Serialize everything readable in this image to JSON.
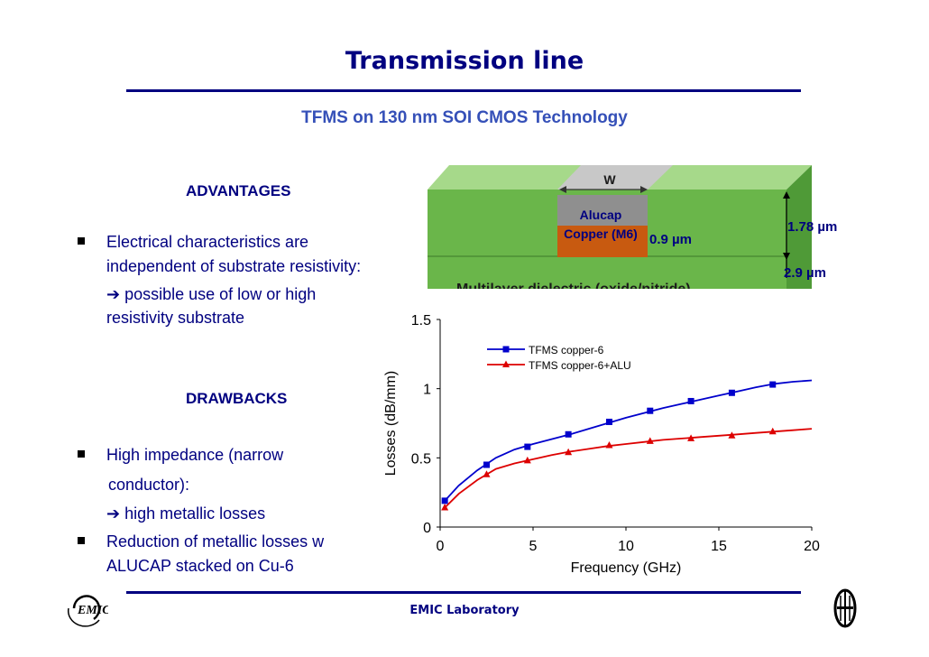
{
  "slide": {
    "title": "Transmission line",
    "subtitle": "TFMS on 130 nm SOI CMOS Technology",
    "footer": "EMIC Laboratory"
  },
  "advantages": {
    "heading": "ADVANTAGES",
    "lines": [
      "Electrical characteristics are",
      "independent of substrate resistivity:",
      "possible use of low or high",
      "resistivity substrate"
    ]
  },
  "drawbacks": {
    "heading": "DRAWBACKS",
    "lines": [
      "High impedance (narrow",
      "conductor):",
      "high metallic losses",
      "Reduction of metallic losses w",
      "ALUCAP stacked on Cu-6"
    ]
  },
  "cross_section": {
    "w_label": "W",
    "alucap_label": "Alucap",
    "copper_label": "Copper (M6)",
    "thickness_conductor": "0.9 µm",
    "thickness_top": "1.78 µm",
    "thickness_total": "2.9 µm",
    "dielectric_label": "Multilayer dielectric (oxide/nitride)",
    "colors": {
      "dielectric": "#6ab64a",
      "dielectric_top": "#a6d98a",
      "alucap": "#8f8f8f",
      "copper": "#c85a10"
    }
  },
  "chart_data": {
    "type": "line",
    "title": "",
    "xlabel": "Frequency (GHz)",
    "ylabel": "Losses (dB/mm)",
    "xlim": [
      0,
      20
    ],
    "ylim": [
      0,
      1.5
    ],
    "xticks": [
      "0",
      "5",
      "10",
      "15",
      "20"
    ],
    "yticks": [
      "0",
      "0.5",
      "1",
      "1.5"
    ],
    "grid": false,
    "legend_position": "top-center",
    "series": [
      {
        "name": "TFMS copper-6",
        "color": "#0000cc",
        "marker": "square",
        "x": [
          0.25,
          2.5,
          4.7,
          6.9,
          9.1,
          11.3,
          13.5,
          15.7,
          17.9
        ],
        "y": [
          0.19,
          0.45,
          0.58,
          0.67,
          0.76,
          0.84,
          0.91,
          0.97,
          1.03
        ],
        "curve_x": [
          0.25,
          1,
          2,
          3,
          4,
          5,
          6,
          7,
          8,
          9,
          10,
          11,
          12,
          13,
          14,
          15,
          16,
          17,
          18,
          19,
          20
        ],
        "curve_y": [
          0.19,
          0.3,
          0.41,
          0.5,
          0.56,
          0.6,
          0.635,
          0.67,
          0.71,
          0.75,
          0.79,
          0.825,
          0.86,
          0.89,
          0.92,
          0.95,
          0.98,
          1.01,
          1.035,
          1.05,
          1.06
        ]
      },
      {
        "name": "TFMS copper-6+ALU",
        "color": "#dd0000",
        "marker": "triangle",
        "x": [
          0.25,
          2.5,
          4.7,
          6.9,
          9.1,
          11.3,
          13.5,
          15.7,
          17.9
        ],
        "y": [
          0.14,
          0.38,
          0.48,
          0.54,
          0.59,
          0.62,
          0.64,
          0.66,
          0.69
        ],
        "curve_x": [
          0.25,
          1,
          2,
          3,
          4,
          5,
          6,
          7,
          8,
          9,
          10,
          11,
          12,
          13,
          14,
          15,
          16,
          17,
          18,
          19,
          20
        ],
        "curve_y": [
          0.14,
          0.24,
          0.34,
          0.42,
          0.46,
          0.49,
          0.52,
          0.545,
          0.565,
          0.585,
          0.6,
          0.615,
          0.63,
          0.64,
          0.65,
          0.66,
          0.67,
          0.68,
          0.69,
          0.7,
          0.71
        ]
      }
    ]
  }
}
